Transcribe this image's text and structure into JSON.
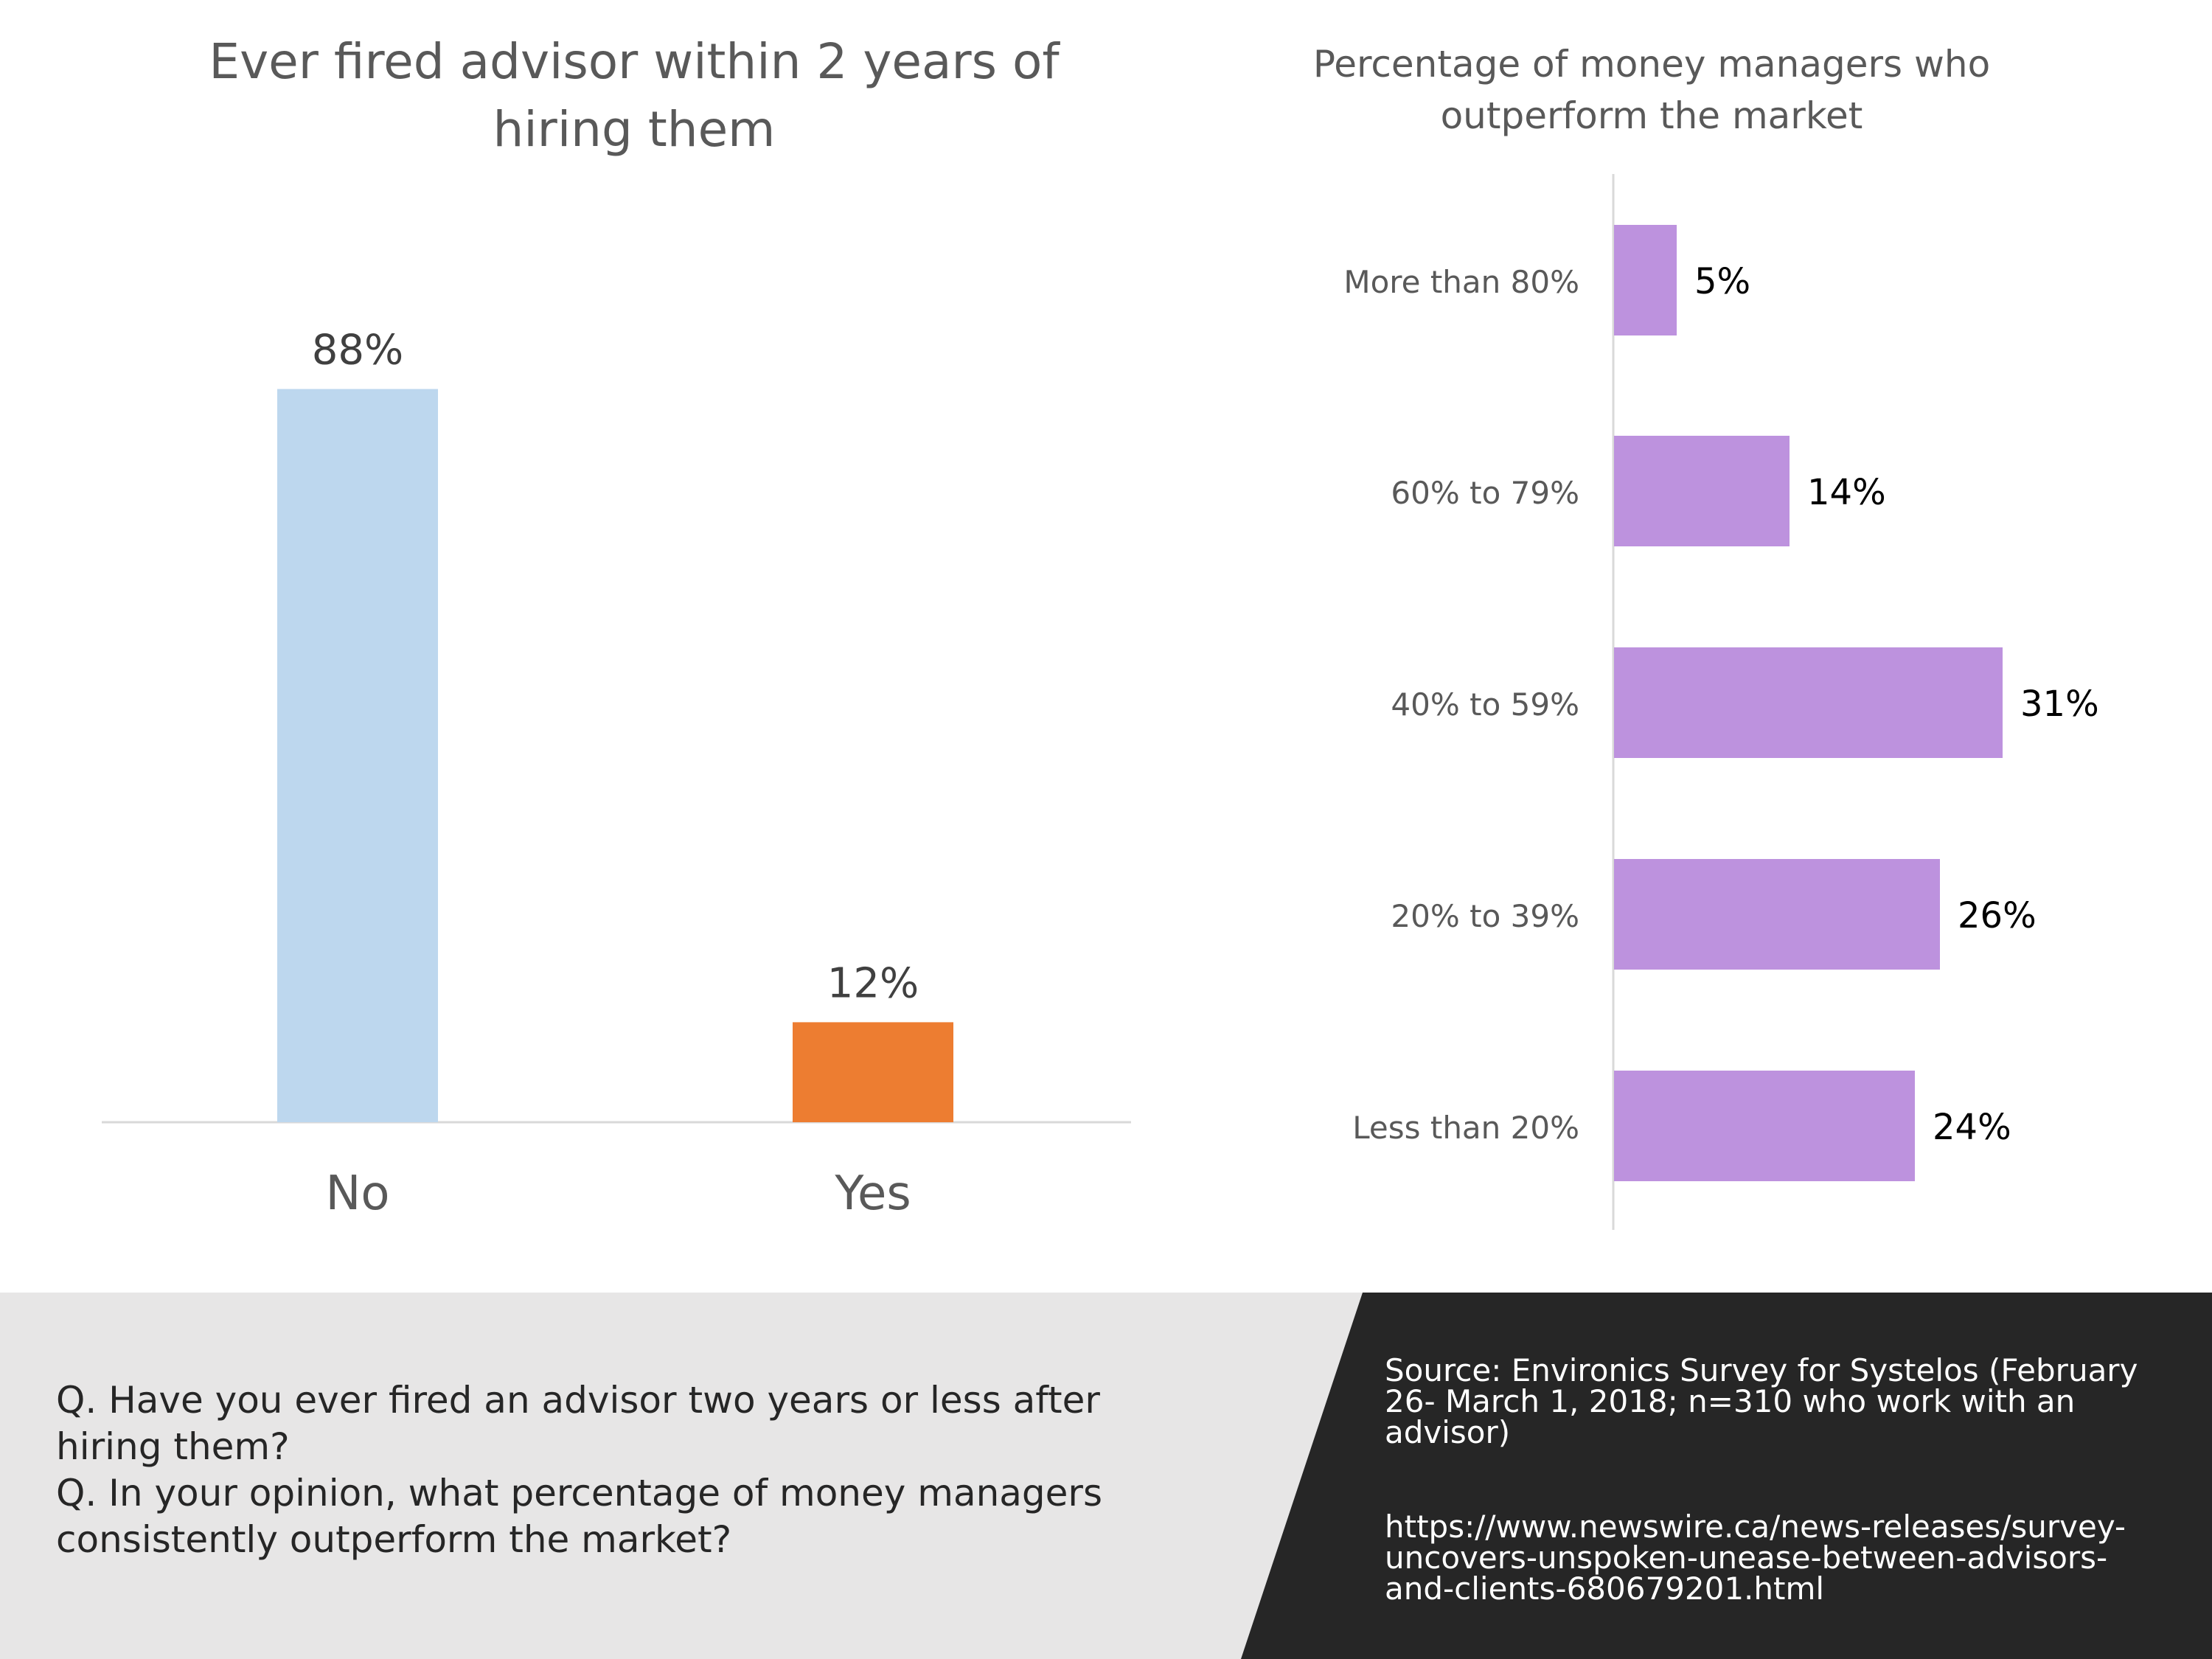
{
  "colors": {
    "no_bar": "#bdd7ee",
    "yes_bar": "#ed7d31",
    "manager_bar": "#bd92de",
    "footer_left": "#e7e6e6",
    "footer_right": "#262626"
  },
  "chart_data": [
    {
      "type": "bar",
      "title_lines": [
        "Ever fired advisor within 2 years of",
        "hiring them"
      ],
      "categories": [
        "No",
        "Yes"
      ],
      "values": [
        88,
        12
      ],
      "value_labels": [
        "88%",
        "12%"
      ],
      "unit": "%",
      "ylim": [
        0,
        100
      ],
      "grid": false,
      "legend": "none"
    },
    {
      "type": "bar",
      "orientation": "horizontal",
      "title_lines": [
        "Percentage of money managers who",
        "outperform the market"
      ],
      "categories": [
        "More than 80%",
        "60% to 79%",
        "40% to 59%",
        "20% to 39%",
        "Less than 20%"
      ],
      "values": [
        5,
        14,
        31,
        26,
        24
      ],
      "value_labels": [
        "5%",
        "14%",
        "31%",
        "26%",
        "24%"
      ],
      "unit": "%",
      "xlim": [
        0,
        40
      ],
      "grid": false,
      "legend": "none"
    }
  ],
  "questions": [
    "Q. Have you ever fired an advisor two years or less after hiring them?",
    "Q. In your opinion, what percentage of money managers consistently outperform the market?"
  ],
  "source": {
    "citation": "Source:  Environics Survey for Systelos (February 26- March 1, 2018; n=310 who work with an advisor)",
    "url": "https://www.newswire.ca/news-releases/survey-uncovers-unspoken-unease-between-advisors-and-clients-680679201.html"
  }
}
